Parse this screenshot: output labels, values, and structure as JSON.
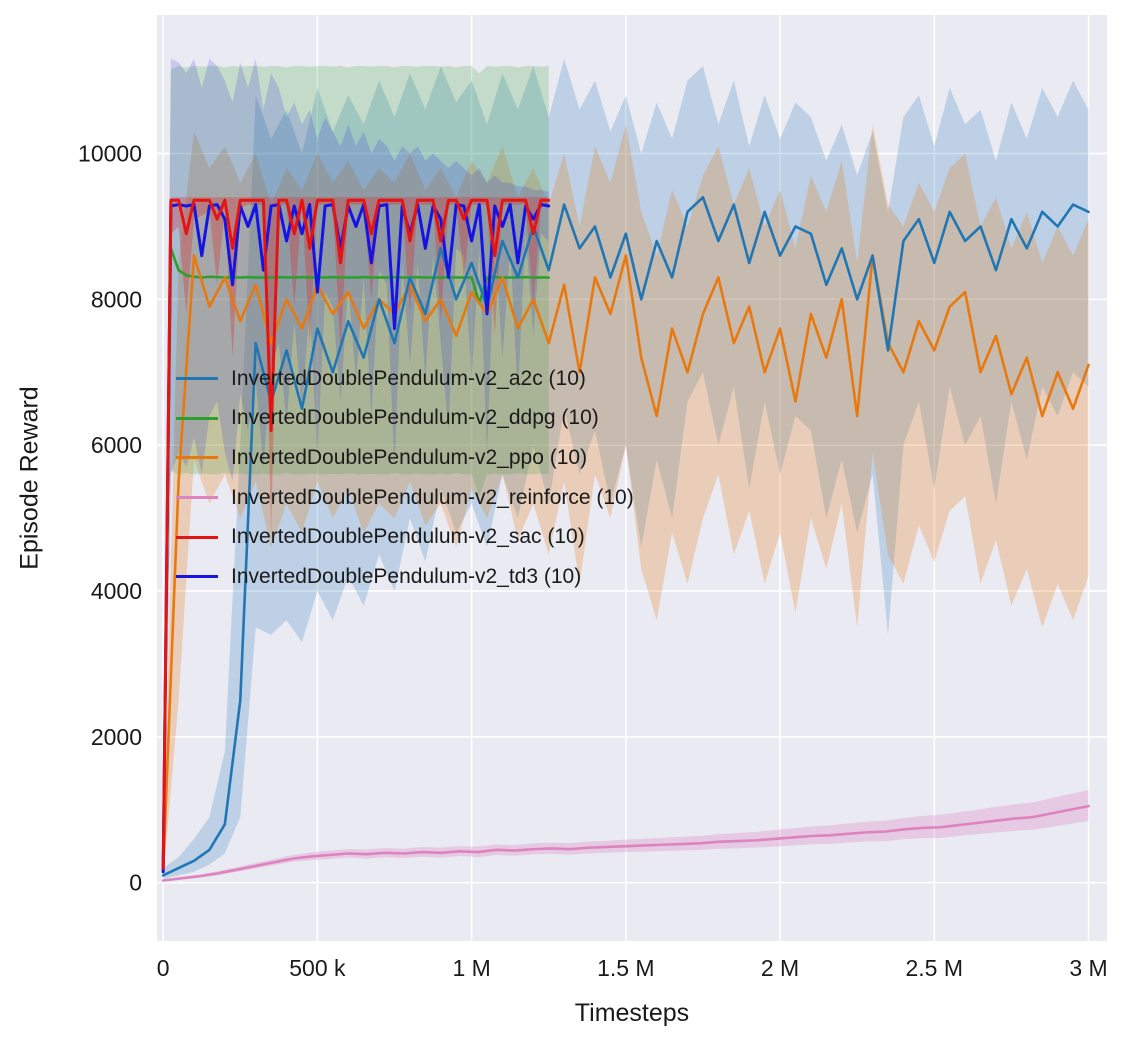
{
  "figure": {
    "background": "#ffffff",
    "plot_background": "#eaeaf2",
    "grid_color": "#ffffff",
    "text_color": "#1a1a1a"
  },
  "chart_data": {
    "type": "line",
    "title": "",
    "xlabel": "Timesteps",
    "ylabel": "Episode Reward",
    "xlim": [
      -20000,
      3060000
    ],
    "ylim": [
      -800,
      11900
    ],
    "grid": true,
    "legend_position": "inside-center-left",
    "xticks": [
      {
        "value": 0,
        "label": "0"
      },
      {
        "value": 500000,
        "label": "500 k"
      },
      {
        "value": 1000000,
        "label": "1 M"
      },
      {
        "value": 1500000,
        "label": "1.5 M"
      },
      {
        "value": 2000000,
        "label": "2 M"
      },
      {
        "value": 2500000,
        "label": "2.5 M"
      },
      {
        "value": 3000000,
        "label": "3 M"
      }
    ],
    "yticks": [
      {
        "value": 0,
        "label": "0"
      },
      {
        "value": 2000,
        "label": "2000"
      },
      {
        "value": 4000,
        "label": "4000"
      },
      {
        "value": 6000,
        "label": "6000"
      },
      {
        "value": 8000,
        "label": "8000"
      },
      {
        "value": 10000,
        "label": "10000"
      }
    ],
    "series": [
      {
        "name": "a2c",
        "label": "InvertedDoublePendulum-v2_a2c (10)",
        "color": "#2077b4",
        "band_opacity": 0.22,
        "x_start": 0,
        "x_step": 50000,
        "y": [
          100,
          200,
          300,
          450,
          800,
          2500,
          7400,
          6600,
          7300,
          6500,
          7600,
          7000,
          7700,
          7200,
          8000,
          7400,
          8300,
          7800,
          8700,
          8000,
          8500,
          7900,
          8800,
          8300,
          9000,
          8400,
          9300,
          8700,
          9000,
          8300,
          8900,
          8000,
          8800,
          8300,
          9200,
          9400,
          8800,
          9300,
          8500,
          9200,
          8600,
          9000,
          8900,
          8200,
          8700,
          8000,
          8600,
          7300,
          8800,
          9100,
          8500,
          9200,
          8800,
          9000,
          8400,
          9100,
          8700,
          9200,
          9000,
          9300,
          9200
        ],
        "y_lo": [
          50,
          100,
          150,
          250,
          400,
          900,
          3500,
          3400,
          3600,
          3300,
          4000,
          3600,
          4200,
          3800,
          4500,
          4000,
          5000,
          4400,
          5400,
          4800,
          5200,
          4600,
          5600,
          5000,
          6000,
          5200,
          6500,
          5600,
          6200,
          5200,
          6000,
          4600,
          5800,
          5000,
          6600,
          7000,
          6000,
          6800,
          5400,
          6600,
          5600,
          6400,
          6200,
          5000,
          5800,
          4800,
          5600,
          3400,
          6000,
          6600,
          5400,
          6800,
          6000,
          6400,
          5200,
          6600,
          5800,
          6800,
          6400,
          7000,
          6800
        ],
        "y_hi": [
          200,
          350,
          600,
          900,
          1800,
          6000,
          10800,
          10200,
          10600,
          10000,
          10900,
          10300,
          10800,
          10400,
          11000,
          10500,
          11100,
          10600,
          11200,
          10700,
          11000,
          10400,
          11100,
          10600,
          11200,
          10500,
          11300,
          10600,
          11000,
          10300,
          10800,
          10000,
          10700,
          10200,
          11000,
          11200,
          10400,
          11000,
          10100,
          10800,
          10200,
          10700,
          10500,
          9900,
          10400,
          9700,
          10300,
          9200,
          10500,
          10800,
          10100,
          10900,
          10400,
          10600,
          9900,
          10700,
          10200,
          10900,
          10500,
          11000,
          10600
        ]
      },
      {
        "name": "ddpg",
        "label": "InvertedDoublePendulum-v2_ddpg (10)",
        "color": "#2ca02c",
        "band_opacity": 0.2,
        "x_start": 0,
        "x_step": 25000,
        "y": [
          300,
          8700,
          8400,
          8330,
          8310,
          8300,
          8310,
          8305,
          8300,
          8300,
          8300,
          8305,
          8300,
          8300,
          8300,
          8305,
          8300,
          8300,
          8305,
          8300,
          8300,
          8300,
          8305,
          8300,
          8300,
          8300,
          8305,
          8300,
          8300,
          8300,
          8305,
          8300,
          8300,
          8305,
          8300,
          8300,
          8300,
          8305,
          8300,
          8300,
          8300,
          7950,
          8300,
          8305,
          8300,
          8300,
          8300,
          8305,
          8300,
          8300,
          8300
        ],
        "y_lo": [
          150,
          5650,
          5600,
          5620,
          5600,
          5610,
          5600,
          5600,
          5620,
          5600,
          5610,
          5600,
          5600,
          5610,
          5600,
          5600,
          5620,
          5600,
          5600,
          5610,
          5600,
          5600,
          5610,
          5600,
          5620,
          5600,
          5600,
          5610,
          5600,
          5600,
          5620,
          5600,
          5600,
          5610,
          5600,
          5600,
          5610,
          5600,
          5620,
          5600,
          5600,
          5300,
          5600,
          5610,
          5600,
          5600,
          5620,
          5600,
          5600,
          5610,
          5600
        ],
        "y_hi": [
          500,
          11150,
          11200,
          11180,
          11200,
          11190,
          11200,
          11200,
          11180,
          11200,
          11190,
          11200,
          11200,
          11190,
          11200,
          11200,
          11180,
          11200,
          11200,
          11190,
          11200,
          11200,
          11190,
          11200,
          11180,
          11200,
          11200,
          11190,
          11200,
          11200,
          11180,
          11200,
          11200,
          11190,
          11200,
          11200,
          11190,
          11200,
          11180,
          11200,
          11200,
          11100,
          11200,
          11190,
          11200,
          11200,
          11180,
          11200,
          11200,
          11190,
          11200
        ]
      },
      {
        "name": "ppo",
        "label": "InvertedDoublePendulum-v2_ppo (10)",
        "color": "#e8790f",
        "band_opacity": 0.25,
        "x_start": 0,
        "x_step": 50000,
        "y": [
          150,
          5500,
          8600,
          7900,
          8300,
          7700,
          8200,
          7400,
          8000,
          7600,
          8200,
          7800,
          8100,
          7600,
          8000,
          7800,
          8200,
          7700,
          8000,
          7500,
          8100,
          7800,
          8300,
          7600,
          8000,
          7400,
          8200,
          7000,
          8300,
          7800,
          8600,
          7200,
          6400,
          7600,
          7000,
          7800,
          8300,
          7400,
          7900,
          7000,
          7600,
          6600,
          7800,
          7200,
          8000,
          6400,
          8600,
          7400,
          7000,
          7700,
          7300,
          7900,
          8100,
          7000,
          7500,
          6700,
          7200,
          6400,
          7000,
          6500,
          7100
        ],
        "y_lo": [
          50,
          2500,
          5800,
          5200,
          5600,
          5000,
          5500,
          4600,
          5200,
          4800,
          5500,
          5000,
          5400,
          4800,
          5200,
          5000,
          5500,
          4900,
          5200,
          4600,
          5400,
          5000,
          5600,
          4700,
          5200,
          4500,
          5500,
          4100,
          5600,
          5000,
          6000,
          4300,
          3600,
          4800,
          4100,
          5000,
          5600,
          4500,
          5100,
          4100,
          4800,
          3700,
          5000,
          4300,
          5200,
          3500,
          5900,
          4500,
          4100,
          4900,
          4400,
          5100,
          5300,
          4100,
          4700,
          3800,
          4300,
          3500,
          4100,
          3600,
          4200
        ],
        "y_hi": [
          300,
          8500,
          10300,
          9800,
          10100,
          9600,
          10000,
          9300,
          9800,
          9500,
          10000,
          9600,
          9900,
          9500,
          9800,
          9600,
          10000,
          9500,
          9800,
          9400,
          9900,
          9600,
          10100,
          9400,
          9800,
          9300,
          10000,
          9000,
          10100,
          9600,
          10400,
          9200,
          8600,
          9500,
          9000,
          9700,
          10100,
          9300,
          9800,
          9000,
          9500,
          8700,
          9700,
          9200,
          9900,
          8500,
          10400,
          9300,
          9000,
          9600,
          9200,
          9800,
          10000,
          9000,
          9400,
          8700,
          9200,
          8500,
          9000,
          8600,
          9100
        ]
      },
      {
        "name": "reinforce",
        "label": "InvertedDoublePendulum-v2_reinforce (10)",
        "color": "#dd84c0",
        "band_opacity": 0.32,
        "x_start": 0,
        "x_step": 60000,
        "y": [
          30,
          60,
          90,
          130,
          180,
          230,
          280,
          330,
          360,
          380,
          400,
          390,
          410,
          400,
          420,
          410,
          430,
          420,
          450,
          440,
          460,
          470,
          460,
          480,
          490,
          500,
          510,
          520,
          530,
          540,
          560,
          570,
          580,
          600,
          620,
          640,
          650,
          670,
          690,
          700,
          730,
          750,
          760,
          790,
          820,
          850,
          880,
          900,
          950,
          1000,
          1050
        ],
        "y_lo": [
          20,
          45,
          70,
          105,
          150,
          195,
          240,
          285,
          310,
          325,
          345,
          330,
          350,
          340,
          355,
          345,
          365,
          350,
          380,
          370,
          390,
          395,
          385,
          400,
          410,
          420,
          425,
          435,
          440,
          450,
          465,
          470,
          480,
          495,
          510,
          525,
          530,
          550,
          565,
          570,
          595,
          610,
          615,
          640,
          665,
          690,
          710,
          725,
          765,
          805,
          845
        ],
        "y_hi": [
          40,
          80,
          115,
          160,
          215,
          270,
          325,
          380,
          415,
          440,
          460,
          455,
          475,
          465,
          490,
          480,
          500,
          495,
          525,
          515,
          540,
          550,
          540,
          565,
          575,
          590,
          600,
          615,
          630,
          640,
          665,
          680,
          695,
          720,
          745,
          770,
          785,
          810,
          835,
          850,
          885,
          915,
          930,
          965,
          1000,
          1040,
          1075,
          1100,
          1160,
          1215,
          1270
        ]
      },
      {
        "name": "sac",
        "label": "InvertedDoublePendulum-v2_sac (10)",
        "color": "#e41414",
        "band_opacity": 0.28,
        "x_start": 0,
        "x_step": 25000,
        "y": [
          200,
          9360,
          9360,
          8900,
          9360,
          9360,
          9360,
          9100,
          9360,
          8700,
          9360,
          9360,
          9360,
          9360,
          6200,
          9360,
          9360,
          8900,
          9360,
          8700,
          9360,
          9360,
          9360,
          8500,
          9360,
          9360,
          9360,
          8900,
          9360,
          9360,
          9360,
          9360,
          8800,
          9360,
          9360,
          9360,
          8800,
          9360,
          9360,
          9100,
          9360,
          9360,
          9360,
          8600,
          9360,
          9360,
          9360,
          9360,
          8900,
          9360,
          9360
        ],
        "y_lo": [
          100,
          8900,
          9000,
          7800,
          9100,
          9150,
          9200,
          8200,
          9250,
          7200,
          9250,
          9300,
          9300,
          9300,
          4800,
          9300,
          9300,
          7900,
          9300,
          7400,
          9300,
          9300,
          9300,
          7300,
          9300,
          9300,
          9300,
          8000,
          9300,
          9300,
          9300,
          9300,
          7800,
          9300,
          9300,
          9300,
          7700,
          9300,
          9300,
          8300,
          9300,
          9300,
          9300,
          7500,
          9300,
          9300,
          9300,
          9300,
          7900,
          9300,
          9300
        ],
        "y_hi": [
          400,
          9400,
          9400,
          9400,
          9400,
          9400,
          9400,
          9400,
          9400,
          9400,
          9400,
          9400,
          9400,
          9400,
          9400,
          9400,
          9400,
          9400,
          9400,
          9400,
          9400,
          9400,
          9400,
          9400,
          9400,
          9400,
          9400,
          9400,
          9400,
          9400,
          9400,
          9400,
          9400,
          9400,
          9400,
          9400,
          9400,
          9400,
          9400,
          9400,
          9400,
          9400,
          9400,
          9400,
          9400,
          9400,
          9400,
          9400,
          9400,
          9400,
          9400
        ]
      },
      {
        "name": "td3",
        "label": "InvertedDoublePendulum-v2_td3 (10)",
        "color": "#1414e4",
        "band_opacity": 0.16,
        "x_start": 0,
        "x_step": 25000,
        "y": [
          150,
          9280,
          9300,
          9280,
          9300,
          8600,
          9280,
          9300,
          9100,
          8200,
          9280,
          9000,
          9300,
          8400,
          9280,
          9300,
          8800,
          9280,
          8900,
          9300,
          8100,
          9280,
          9300,
          8700,
          9280,
          9000,
          9300,
          8500,
          9280,
          9300,
          7600,
          9280,
          8900,
          9300,
          8700,
          9280,
          9100,
          8300,
          9300,
          9280,
          8800,
          9300,
          7800,
          9280,
          9000,
          9300,
          8500,
          9280,
          9100,
          9300,
          9280
        ],
        "y_lo": [
          50,
          5600,
          5900,
          5700,
          6100,
          5600,
          6400,
          6600,
          5900,
          5500,
          6700,
          6200,
          6900,
          5700,
          7100,
          7400,
          6300,
          7700,
          6500,
          7900,
          5800,
          8100,
          7900,
          6600,
          8200,
          6900,
          8300,
          6400,
          8400,
          8200,
          5700,
          8500,
          7100,
          8500,
          6900,
          8600,
          7400,
          6200,
          8700,
          8600,
          6900,
          8700,
          5900,
          8800,
          7200,
          8700,
          6700,
          8900,
          7500,
          8900,
          8800
        ],
        "y_hi": [
          300,
          11300,
          11250,
          11100,
          11300,
          10900,
          11300,
          11200,
          11000,
          10700,
          11250,
          10900,
          11300,
          10600,
          11100,
          10900,
          10500,
          10700,
          10400,
          10600,
          10200,
          10500,
          10300,
          10100,
          10400,
          10100,
          10300,
          10000,
          10200,
          10100,
          9900,
          10100,
          10000,
          10100,
          9900,
          10000,
          9900,
          9800,
          9900,
          9800,
          9700,
          9800,
          9600,
          9700,
          9600,
          9600,
          9550,
          9550,
          9500,
          9500,
          9480
        ]
      }
    ]
  }
}
